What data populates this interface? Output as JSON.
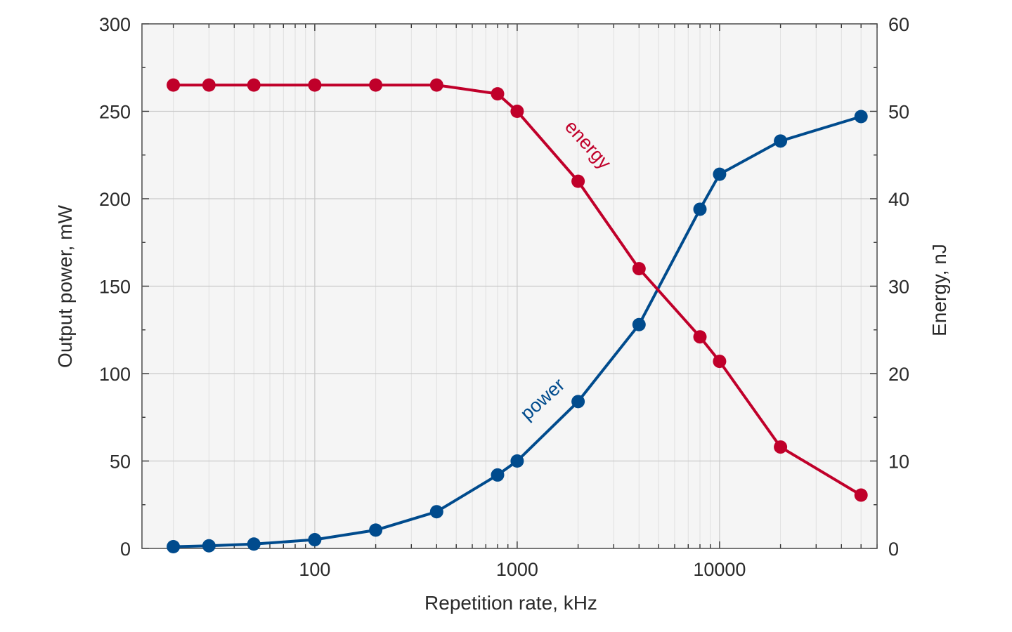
{
  "chart_data": {
    "type": "line",
    "xlabel": "Repetition rate, kHz",
    "ylabel_left": "Output power, mW",
    "ylabel_right": "Energy, nJ",
    "x_scale": "log",
    "xlim": [
      14,
      60000
    ],
    "ylim_left": [
      0,
      300
    ],
    "ylim_right": [
      0,
      60
    ],
    "x_major_ticks": [
      100,
      1000,
      10000
    ],
    "x_major_tick_labels": [
      "100",
      "1000",
      "10000"
    ],
    "y_left_ticks": [
      0,
      50,
      100,
      150,
      200,
      250,
      300
    ],
    "y_left_tick_labels": [
      "0",
      "50",
      "100",
      "150",
      "200",
      "250",
      "300"
    ],
    "y_right_ticks": [
      0,
      10,
      20,
      30,
      40,
      50,
      60
    ],
    "y_right_tick_labels": [
      "0",
      "10",
      "20",
      "30",
      "40",
      "50",
      "60"
    ],
    "grid": true,
    "series": [
      {
        "name": "power",
        "axis": "left",
        "color": "#004b8d",
        "label_position": "along-curve",
        "points": [
          {
            "x": 20,
            "y": 1
          },
          {
            "x": 30,
            "y": 1.5
          },
          {
            "x": 50,
            "y": 2.5
          },
          {
            "x": 100,
            "y": 5
          },
          {
            "x": 200,
            "y": 10.5
          },
          {
            "x": 400,
            "y": 21
          },
          {
            "x": 800,
            "y": 42
          },
          {
            "x": 1000,
            "y": 50
          },
          {
            "x": 2000,
            "y": 84
          },
          {
            "x": 4000,
            "y": 128
          },
          {
            "x": 8000,
            "y": 194
          },
          {
            "x": 10000,
            "y": 214
          },
          {
            "x": 20000,
            "y": 233
          },
          {
            "x": 50000,
            "y": 247
          }
        ]
      },
      {
        "name": "energy",
        "axis": "right",
        "color": "#c0002a",
        "label_position": "along-curve",
        "points": [
          {
            "x": 20,
            "y": 53
          },
          {
            "x": 30,
            "y": 53
          },
          {
            "x": 50,
            "y": 53
          },
          {
            "x": 100,
            "y": 53
          },
          {
            "x": 200,
            "y": 53
          },
          {
            "x": 400,
            "y": 53
          },
          {
            "x": 800,
            "y": 52
          },
          {
            "x": 1000,
            "y": 50
          },
          {
            "x": 2000,
            "y": 42
          },
          {
            "x": 4000,
            "y": 32
          },
          {
            "x": 8000,
            "y": 24.2
          },
          {
            "x": 10000,
            "y": 21.4
          },
          {
            "x": 20000,
            "y": 11.6
          },
          {
            "x": 50000,
            "y": 6.1
          }
        ]
      }
    ]
  }
}
